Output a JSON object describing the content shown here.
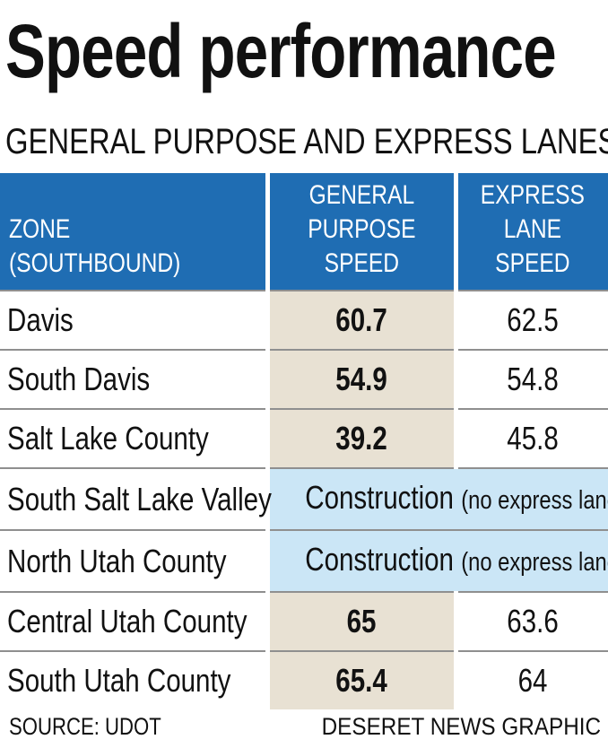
{
  "title": "Speed performance",
  "subtitle": "GENERAL PURPOSE AND EXPRESS LANES",
  "footer": {
    "source": "SOURCE: UDOT",
    "credit": "DESERET NEWS GRAPHIC"
  },
  "colors": {
    "header_bg": "#1f6db3",
    "general_purpose_bg": "#e8e1d3",
    "construction_bg": "#cbe6f6",
    "row_divider": "#8f8f8f"
  },
  "chart_data": {
    "type": "table",
    "title": "Speed performance",
    "subtitle": "GENERAL PURPOSE AND EXPRESS LANES",
    "columns": [
      "ZONE\n(SOUTHBOUND)",
      "GENERAL\nPURPOSE\nSPEED",
      "EXPRESS\nLANE\nSPEED"
    ],
    "rows": [
      {
        "zone": "Davis",
        "general_purpose_speed": "60.7",
        "express_lane_speed": "62.5"
      },
      {
        "zone": "South Davis",
        "general_purpose_speed": "54.9",
        "express_lane_speed": "54.8"
      },
      {
        "zone": "Salt Lake County",
        "general_purpose_speed": "39.2",
        "express_lane_speed": "45.8"
      },
      {
        "zone": "South Salt Lake Valley",
        "note": "Construction",
        "note_detail": "(no express lane)"
      },
      {
        "zone": "North Utah County",
        "note": "Construction",
        "note_detail": "(no express lane)"
      },
      {
        "zone": "Central Utah County",
        "general_purpose_speed": "65",
        "express_lane_speed": "63.6"
      },
      {
        "zone": "South Utah County",
        "general_purpose_speed": "65.4",
        "express_lane_speed": "64"
      }
    ]
  }
}
